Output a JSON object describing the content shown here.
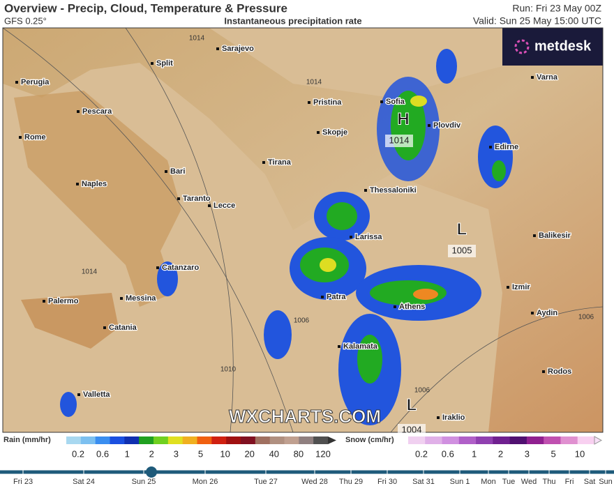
{
  "header": {
    "title": "Overview - Precip, Cloud, Temperature & Pressure",
    "model": "GFS 0.25°",
    "subtitle": "Instantaneous precipitation rate",
    "run": "Run: Fri 23 May 00Z",
    "valid": "Valid: Sun 25 May 15:00 UTC"
  },
  "logo": "metdesk",
  "watermark": "WXCHARTS.COM",
  "cities": [
    "Sarajevo",
    "Split",
    "Perugia",
    "Pescara",
    "Rome",
    "Bari",
    "Naples",
    "Taranto",
    "Lecce",
    "Tirana",
    "Pristina",
    "Skopje",
    "Sofia",
    "Plovdiv",
    "Varna",
    "Edirne",
    "Thessaloniki",
    "Larissa",
    "Balikesir",
    "Catanzaro",
    "Izmir",
    "Palermo",
    "Messina",
    "Patra",
    "Athens",
    "Aydin",
    "Catania",
    "Kalamata",
    "Rodos",
    "Valletta",
    "Iraklio"
  ],
  "pressure_centers": [
    {
      "symbol": "H",
      "value": "1014"
    },
    {
      "symbol": "L",
      "value": "1005"
    },
    {
      "symbol": "L",
      "value": "1004"
    }
  ],
  "isobar_labels": [
    "1014",
    "1014",
    "1014",
    "1010",
    "1006",
    "1006",
    "1006"
  ],
  "legend": {
    "rain_title": "Rain (mm/hr)",
    "rain_labels": [
      "0.2",
      "0.6",
      "1",
      "2",
      "3",
      "5",
      "10",
      "20",
      "40",
      "80",
      "120"
    ],
    "snow_title": "Snow (cm/hr)",
    "snow_labels": [
      "0.2",
      "0.6",
      "1",
      "2",
      "3",
      "5",
      "10"
    ]
  },
  "timeline": [
    "Fri 23",
    "Sat 24",
    "Sun 25",
    "Mon 26",
    "Tue 27",
    "Wed 28",
    "Thu 29",
    "Fri 30",
    "Sat 31",
    "Sun 1",
    "Mon",
    "Tue",
    "Wed",
    "Thu",
    "Fri",
    "Sat",
    "Sun"
  ]
}
